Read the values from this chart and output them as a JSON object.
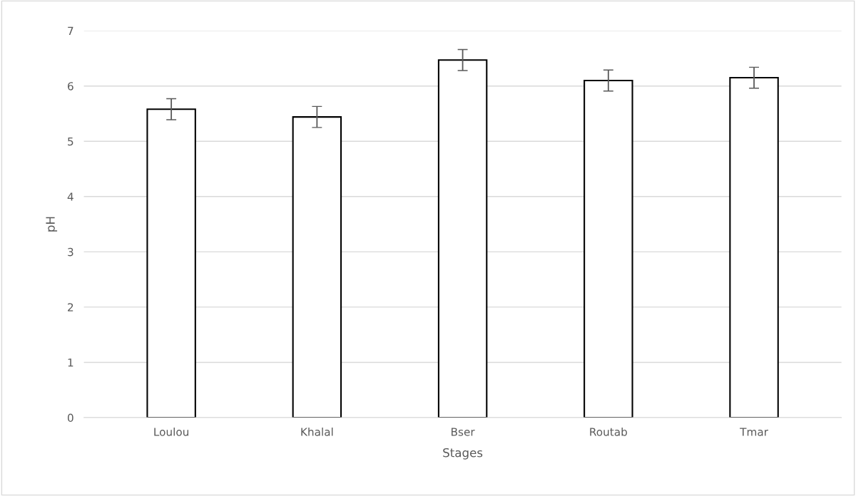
{
  "chart_data": {
    "type": "bar",
    "xlabel": "Stages",
    "ylabel": "pH",
    "categories": [
      "Loulou",
      "Khalal",
      "Bser",
      "Routab",
      "Tmar"
    ],
    "values": [
      5.58,
      5.44,
      6.47,
      6.1,
      6.15
    ],
    "errors": [
      0.19,
      0.19,
      0.19,
      0.19,
      0.19
    ],
    "color": "#ffffff",
    "ylim": [
      0,
      7
    ],
    "yticks": [
      0,
      1,
      2,
      3,
      4,
      5,
      6,
      7
    ],
    "grid": "y"
  }
}
